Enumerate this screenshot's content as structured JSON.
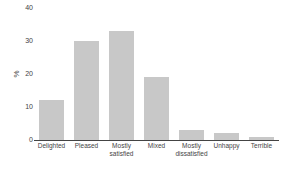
{
  "chart_data": {
    "type": "bar",
    "categories": [
      "Delighted",
      "Pleased",
      "Mostly\nsatisfied",
      "Mixed",
      "Mostly\ndissatisfied",
      "Unhappy",
      "Terrible"
    ],
    "series": [
      {
        "color": "#c8c8c8",
        "values": [
          10,
          10,
          10,
          10,
          0,
          0,
          0
        ]
      },
      {
        "color": "#c8c8c8",
        "values": [
          2,
          20,
          23,
          9,
          3,
          2,
          1
        ]
      }
    ],
    "stacked": true,
    "ylabel": "%",
    "ylim": [
      0,
      40
    ],
    "yticks": [
      0,
      10,
      20,
      30,
      40
    ],
    "grid": false
  }
}
